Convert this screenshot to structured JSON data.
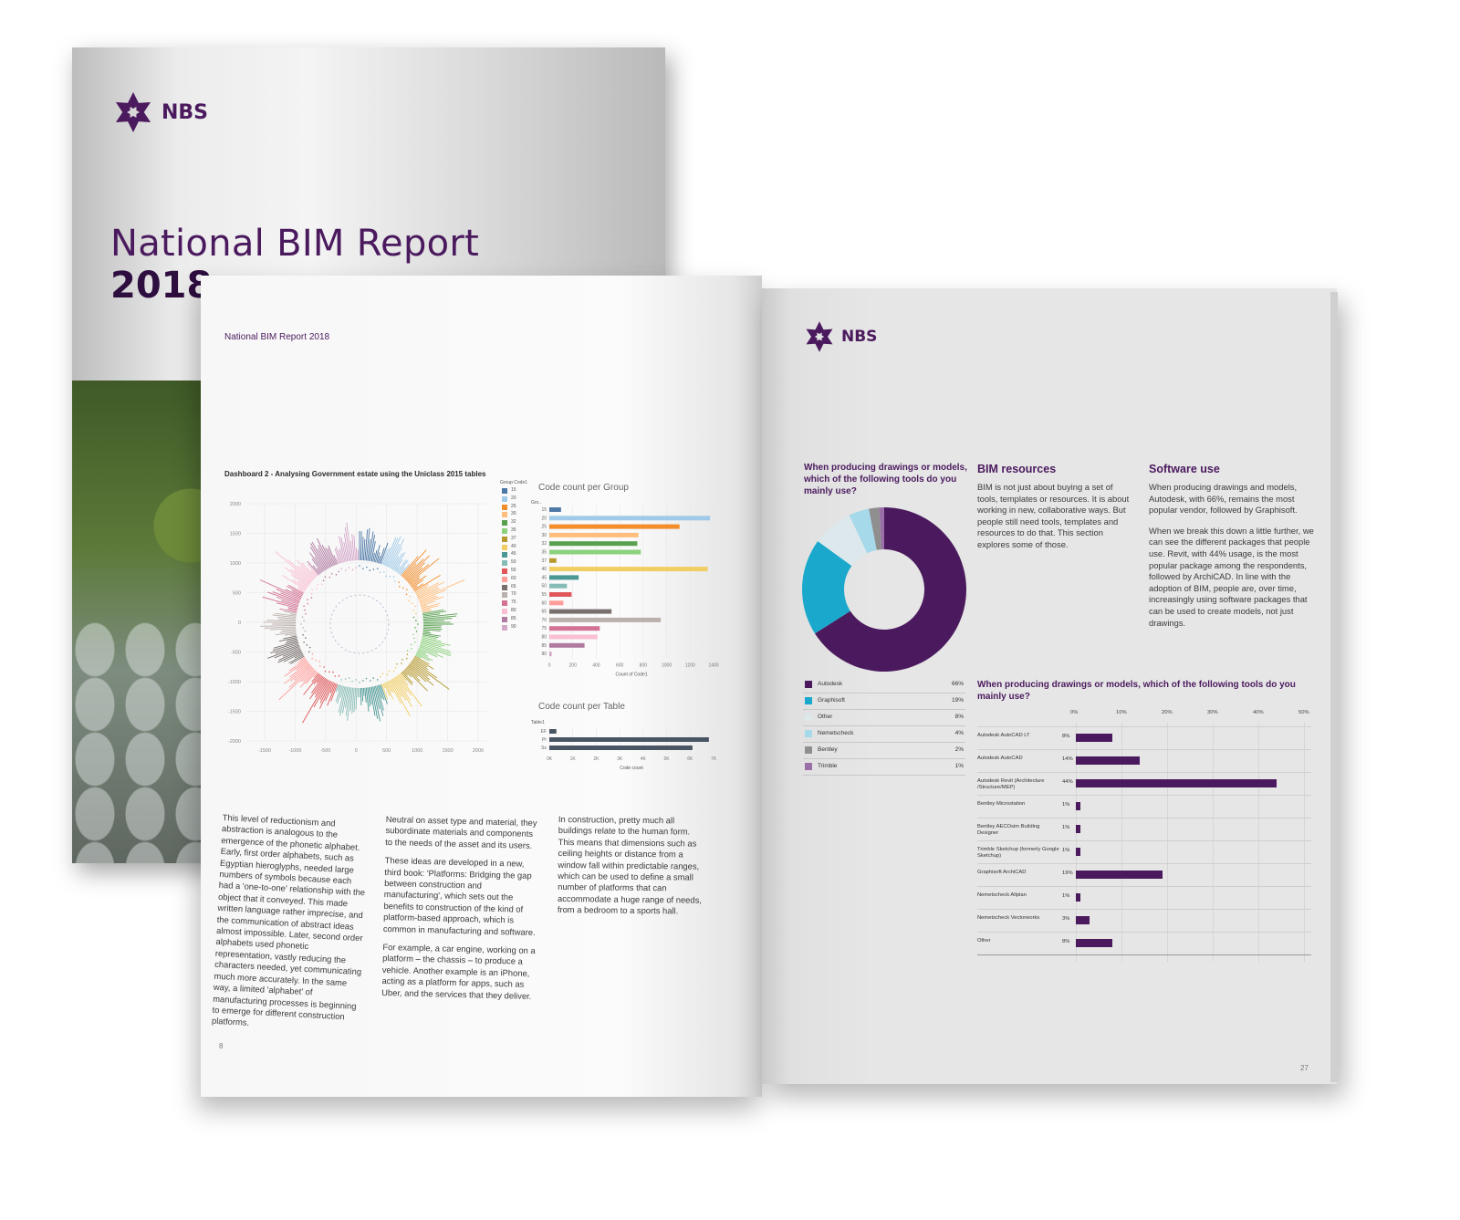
{
  "cover": {
    "logo_text": "NBS",
    "title": "National BIM Report",
    "year": "2018"
  },
  "left_page": {
    "running_head": "National BIM Report 2018",
    "dashboard_title": "Dashboard 2 - Analysing Government estate using the Uniclass 2015 tables",
    "radial_axis": {
      "y_ticks": [
        "2000",
        "1500",
        "1000",
        "500",
        "0",
        "-500",
        "-1000",
        "-1500",
        "-2000"
      ],
      "x_ticks": [
        "-1500",
        "-1000",
        "-500",
        "0",
        "500",
        "1000",
        "1500",
        "2000"
      ]
    },
    "group_legend": {
      "title": "Group Code1",
      "codes": [
        "15",
        "20",
        "25",
        "30",
        "32",
        "35",
        "37",
        "40",
        "45",
        "50",
        "55",
        "60",
        "65",
        "70",
        "75",
        "80",
        "85",
        "90"
      ],
      "colors": [
        "#4e79a7",
        "#a0cbe8",
        "#f28e2b",
        "#ffbe7d",
        "#59a14f",
        "#8cd17d",
        "#b6992d",
        "#f1ce63",
        "#499894",
        "#86bcb6",
        "#e15759",
        "#ff9d9a",
        "#79706e",
        "#bab0ac",
        "#d37295",
        "#fabfd2",
        "#b07aa1",
        "#d4a6c8"
      ]
    },
    "charts": {
      "code_count_per_group": {
        "title": "Code count per Group",
        "ylabel": "Gro..",
        "xlabel": "Count of Code1",
        "x_ticks": [
          "0",
          "200",
          "400",
          "600",
          "800",
          "1000",
          "1200",
          "1400"
        ]
      },
      "code_count_per_table": {
        "title": "Code count per Table",
        "ylabel": "Table1",
        "xlabel": "Code count",
        "x_ticks": [
          "0K",
          "1K",
          "2K",
          "3K",
          "4K",
          "5K",
          "6K",
          "7K"
        ]
      }
    },
    "col1": "This level of reductionism and abstraction is analogous to the emergence of the phonetic alphabet. Early, first order alphabets, such as Egyptian hieroglyphs, needed large numbers of symbols because each had a 'one-to-one' relationship with the object that it conveyed. This made written language rather imprecise, and the communication of abstract ideas almost impossible. Later, second order alphabets used phonetic representation, vastly reducing the characters needed, yet communicating much more accurately. In the same way, a limited 'alphabet' of manufacturing processes is beginning to emerge for different construction platforms.",
    "col2_p1": "Neutral on asset type and material, they subordinate materials and components to the needs of the asset and its users.",
    "col2_p2": "These ideas are developed in a new, third book: 'Platforms: Bridging the gap between construction and manufacturing', which sets out the benefits to construction of the kind of platform-based approach, which is common in manufacturing and software.",
    "col2_p3": "For example, a car engine, working on a platform – the chassis – to produce a vehicle. Another example is an iPhone, acting as a platform for apps, such as Uber, and the services that they deliver.",
    "col3": "In construction, pretty much all buildings relate to the human form. This means that dimensions such as ceiling heights or distance from a window fall within predictable ranges, which can be used to define a small number of platforms that can accommodate a huge range of needs, from a bedroom to a sports hall.",
    "page_number": "8"
  },
  "right_page": {
    "logo_text": "NBS",
    "donut_question": "When producing drawings or models, which of the following tools do you mainly use?",
    "bim_heading": "BIM resources",
    "bim_text": "BIM is not just about buying a set of tools, templates or resources. It is about working in new, collaborative ways. But people still need tools, templates and resources to do that. This section explores some of those.",
    "software_heading": "Software use",
    "software_p1": "When producing drawings and models, Autodesk, with 66%, remains the most popular vendor, followed by Graphisoft.",
    "software_p2": "When we break this down a little further, we can see the different packages that people use. Revit, with 44% usage, is the most popular package among the respondents, followed by ArchiCAD. In line with the adoption of BIM, people are, over time, increasingly using software packages that can be used to create models, not just drawings.",
    "bar_question": "When producing drawings or models, which of the following tools do you mainly use?",
    "page_number": "27"
  },
  "chart_data": [
    {
      "type": "pie",
      "labels": [
        "Autodesk",
        "Graphisoft",
        "Other",
        "Nemetscheck",
        "Bentley",
        "Trimble"
      ],
      "values": [
        66,
        19,
        8,
        4,
        2,
        1
      ],
      "value_labels": [
        "66%",
        "19%",
        "8%",
        "4%",
        "2%",
        "1%"
      ],
      "colors": [
        "#4b1a5e",
        "#1aa9cc",
        "#dde8ec",
        "#a6d9ea",
        "#8f8f8f",
        "#9a6fa8"
      ]
    },
    {
      "type": "bar",
      "orientation": "horizontal",
      "categories": [
        "Autodesk AutoCAD LT",
        "Autodesk AutoCAD",
        "Autodesk Revit (Architecture /Structure/MEP)",
        "Bentley Microstation",
        "Bentley AECOsim Building Designer",
        "Trimble Sketchup (formerly Google Sketchup)",
        "Graphisoft ArchiCAD",
        "Nemetscheck Allplan",
        "Nemetscheck Vectorworks",
        "Other"
      ],
      "values": [
        8,
        14,
        44,
        1,
        1,
        1,
        19,
        1,
        3,
        8
      ],
      "value_labels": [
        "8%",
        "14%",
        "44%",
        "1%",
        "1%",
        "1%",
        "19%",
        "1%",
        "3%",
        "8%"
      ],
      "x_ticks": [
        "0%",
        "10%",
        "20%",
        "30%",
        "40%",
        "50%"
      ],
      "xlim": [
        0,
        50
      ],
      "color": "#4b1a5e"
    },
    {
      "type": "bar",
      "orientation": "horizontal",
      "title": "Code count per Group",
      "categories": [
        "15",
        "20",
        "25",
        "30",
        "32",
        "35",
        "37",
        "40",
        "45",
        "50",
        "55",
        "60",
        "65",
        "70",
        "75",
        "80",
        "85",
        "90"
      ],
      "values": [
        100,
        1370,
        1110,
        760,
        750,
        780,
        60,
        1350,
        250,
        150,
        190,
        120,
        530,
        950,
        430,
        410,
        300,
        20
      ],
      "xlim": [
        0,
        1400
      ],
      "colors": [
        "#4e79a7",
        "#a0cbe8",
        "#f28e2b",
        "#ffbe7d",
        "#59a14f",
        "#8cd17d",
        "#b6992d",
        "#f1ce63",
        "#499894",
        "#86bcb6",
        "#e15759",
        "#ff9d9a",
        "#79706e",
        "#bab0ac",
        "#d37295",
        "#fabfd2",
        "#b07aa1",
        "#d4a6c8"
      ]
    },
    {
      "type": "bar",
      "orientation": "horizontal",
      "title": "Code count per Table",
      "categories": [
        "EF",
        "Pr",
        "Ss"
      ],
      "values": [
        300,
        6800,
        6100
      ],
      "xlim": [
        0,
        7000
      ],
      "colors": [
        "#4a5563",
        "#4a5563",
        "#4a5563"
      ]
    }
  ]
}
